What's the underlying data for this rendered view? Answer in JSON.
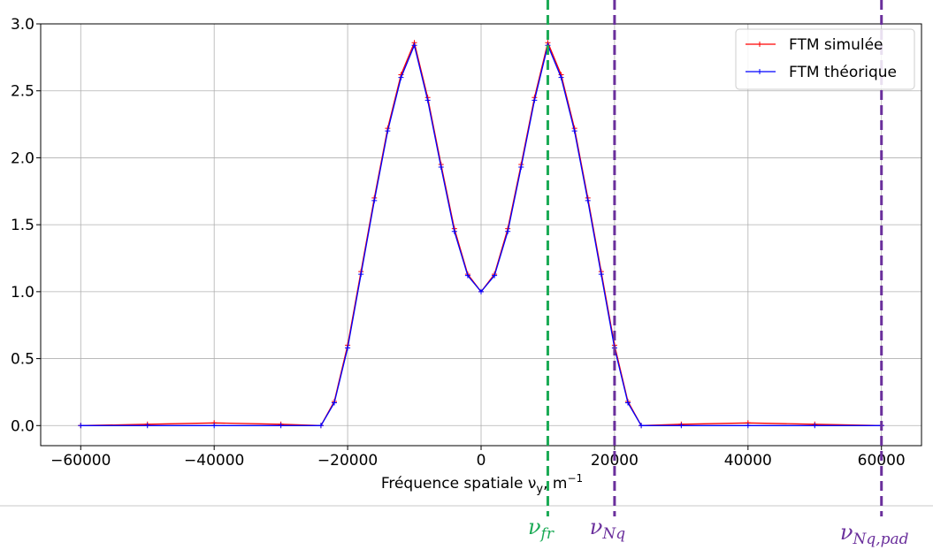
{
  "chart_data": {
    "type": "line",
    "title": "",
    "xlabel": "Fréquence spatiale ν",
    "xlabel_sub": "y",
    "xlabel_unit": ", m",
    "xlabel_sup": "−1",
    "ylabel": "",
    "xlim": [
      -66000,
      66000
    ],
    "ylim": [
      -0.15,
      3.0
    ],
    "x_ticks": [
      -60000,
      -40000,
      -20000,
      0,
      20000,
      40000,
      60000
    ],
    "x_tick_labels": [
      "−60000",
      "−40000",
      "−20000",
      "0",
      "20000",
      "40000",
      "60000"
    ],
    "y_ticks": [
      0.0,
      0.5,
      1.0,
      1.5,
      2.0,
      2.5,
      3.0
    ],
    "y_tick_labels": [
      "0.0",
      "0.5",
      "1.0",
      "1.5",
      "2.0",
      "2.5",
      "3.0"
    ],
    "grid": true,
    "legend_position": "top-right",
    "series": [
      {
        "name": "FTM simulée",
        "color": "#ff0000",
        "marker": "+",
        "x": [
          -60000,
          -50000,
          -40000,
          -30000,
          -24000,
          -22000,
          -20000,
          -18000,
          -16000,
          -14000,
          -12000,
          -10000,
          -8000,
          -6000,
          -4000,
          -2000,
          0,
          2000,
          4000,
          6000,
          8000,
          10000,
          12000,
          14000,
          16000,
          18000,
          20000,
          22000,
          24000,
          30000,
          40000,
          50000,
          60000
        ],
        "y": [
          0.0,
          0.01,
          0.02,
          0.01,
          0.0,
          0.18,
          0.6,
          1.15,
          1.7,
          2.22,
          2.62,
          2.86,
          2.45,
          1.95,
          1.47,
          1.13,
          1.0,
          1.13,
          1.47,
          1.95,
          2.45,
          2.86,
          2.62,
          2.22,
          1.7,
          1.15,
          0.6,
          0.18,
          0.0,
          0.01,
          0.02,
          0.01,
          0.0
        ]
      },
      {
        "name": "FTM théorique",
        "color": "#0000ff",
        "marker": "+",
        "x": [
          -60000,
          -50000,
          -40000,
          -30000,
          -24000,
          -22000,
          -20000,
          -18000,
          -16000,
          -14000,
          -12000,
          -10000,
          -8000,
          -6000,
          -4000,
          -2000,
          0,
          2000,
          4000,
          6000,
          8000,
          10000,
          12000,
          14000,
          16000,
          18000,
          20000,
          22000,
          24000,
          30000,
          40000,
          50000,
          60000
        ],
        "y": [
          0.0,
          0.0,
          0.0,
          0.0,
          0.0,
          0.17,
          0.58,
          1.13,
          1.68,
          2.2,
          2.6,
          2.84,
          2.43,
          1.93,
          1.45,
          1.12,
          1.0,
          1.12,
          1.45,
          1.93,
          2.43,
          2.84,
          2.6,
          2.2,
          1.68,
          1.13,
          0.58,
          0.17,
          0.0,
          0.0,
          0.0,
          0.0,
          0.0
        ]
      }
    ],
    "vertical_lines": [
      {
        "x": 10000,
        "color": "#1aaa55",
        "label": "ν",
        "label_sub": "fr"
      },
      {
        "x": 20000,
        "color": "#6a2f9c",
        "label": "ν",
        "label_sub": "Nq"
      },
      {
        "x": 60000,
        "color": "#6a2f9c",
        "label": "ν",
        "label_sub": "Nq,pad"
      }
    ]
  }
}
